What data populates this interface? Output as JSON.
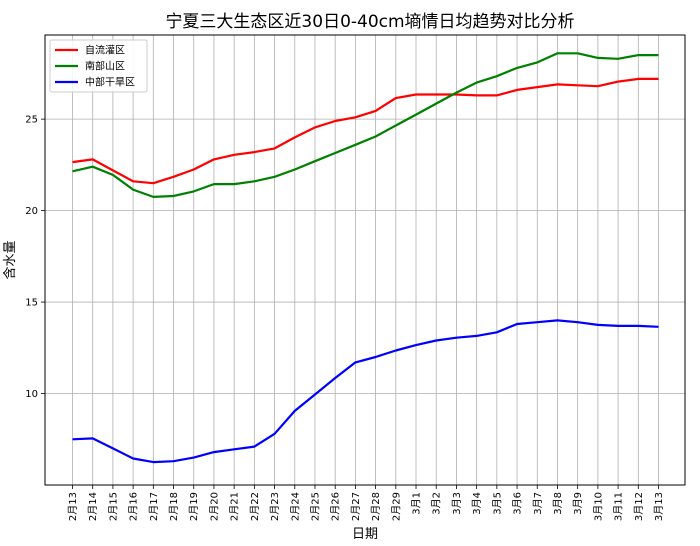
{
  "chart_data": {
    "type": "line",
    "title": "宁夏三大生态区近30日0-40cm墒情日均趋势对比分析",
    "xlabel": "日期",
    "ylabel": "含水量",
    "categories": [
      "2月13",
      "2月14",
      "2月15",
      "2月16",
      "2月17",
      "2月18",
      "2月19",
      "2月20",
      "2月21",
      "2月22",
      "2月23",
      "2月24",
      "2月25",
      "2月26",
      "2月27",
      "2月28",
      "2月29",
      "3月1",
      "3月2",
      "3月3",
      "3月4",
      "3月5",
      "3月6",
      "3月7",
      "3月8",
      "3月9",
      "3月10",
      "3月11",
      "3月12",
      "3月13"
    ],
    "yticks": [
      10,
      15,
      20,
      25
    ],
    "ylim": [
      5,
      29.6
    ],
    "grid": true,
    "legend_position": "upper-left",
    "series": [
      {
        "name": "自流灌区",
        "color": "#ff0000",
        "values": [
          22.65,
          22.8,
          22.2,
          21.6,
          21.5,
          21.85,
          22.25,
          22.8,
          23.05,
          23.2,
          23.4,
          24.0,
          24.55,
          24.9,
          25.1,
          25.45,
          26.15,
          26.35,
          26.35,
          26.35,
          26.3,
          26.3,
          26.6,
          26.75,
          26.9,
          26.85,
          26.8,
          27.05,
          27.2,
          27.2
        ]
      },
      {
        "name": "南部山区",
        "color": "#008000",
        "values": [
          22.15,
          22.4,
          21.95,
          21.15,
          20.75,
          20.8,
          21.05,
          21.45,
          21.45,
          21.6,
          21.85,
          22.25,
          22.7,
          23.15,
          23.6,
          24.05,
          24.65,
          25.25,
          25.85,
          26.45,
          27.0,
          27.35,
          27.8,
          28.1,
          28.6,
          28.6,
          28.35,
          28.3,
          28.5,
          28.5
        ]
      },
      {
        "name": "中部干旱区",
        "color": "#0000ff",
        "values": [
          7.5,
          7.55,
          7.0,
          6.45,
          6.25,
          6.3,
          6.5,
          6.8,
          6.95,
          7.1,
          7.8,
          9.05,
          9.95,
          10.85,
          11.7,
          12.0,
          12.35,
          12.65,
          12.9,
          13.05,
          13.15,
          13.35,
          13.8,
          13.9,
          14.0,
          13.9,
          13.75,
          13.7,
          13.7,
          13.65
        ]
      }
    ]
  }
}
